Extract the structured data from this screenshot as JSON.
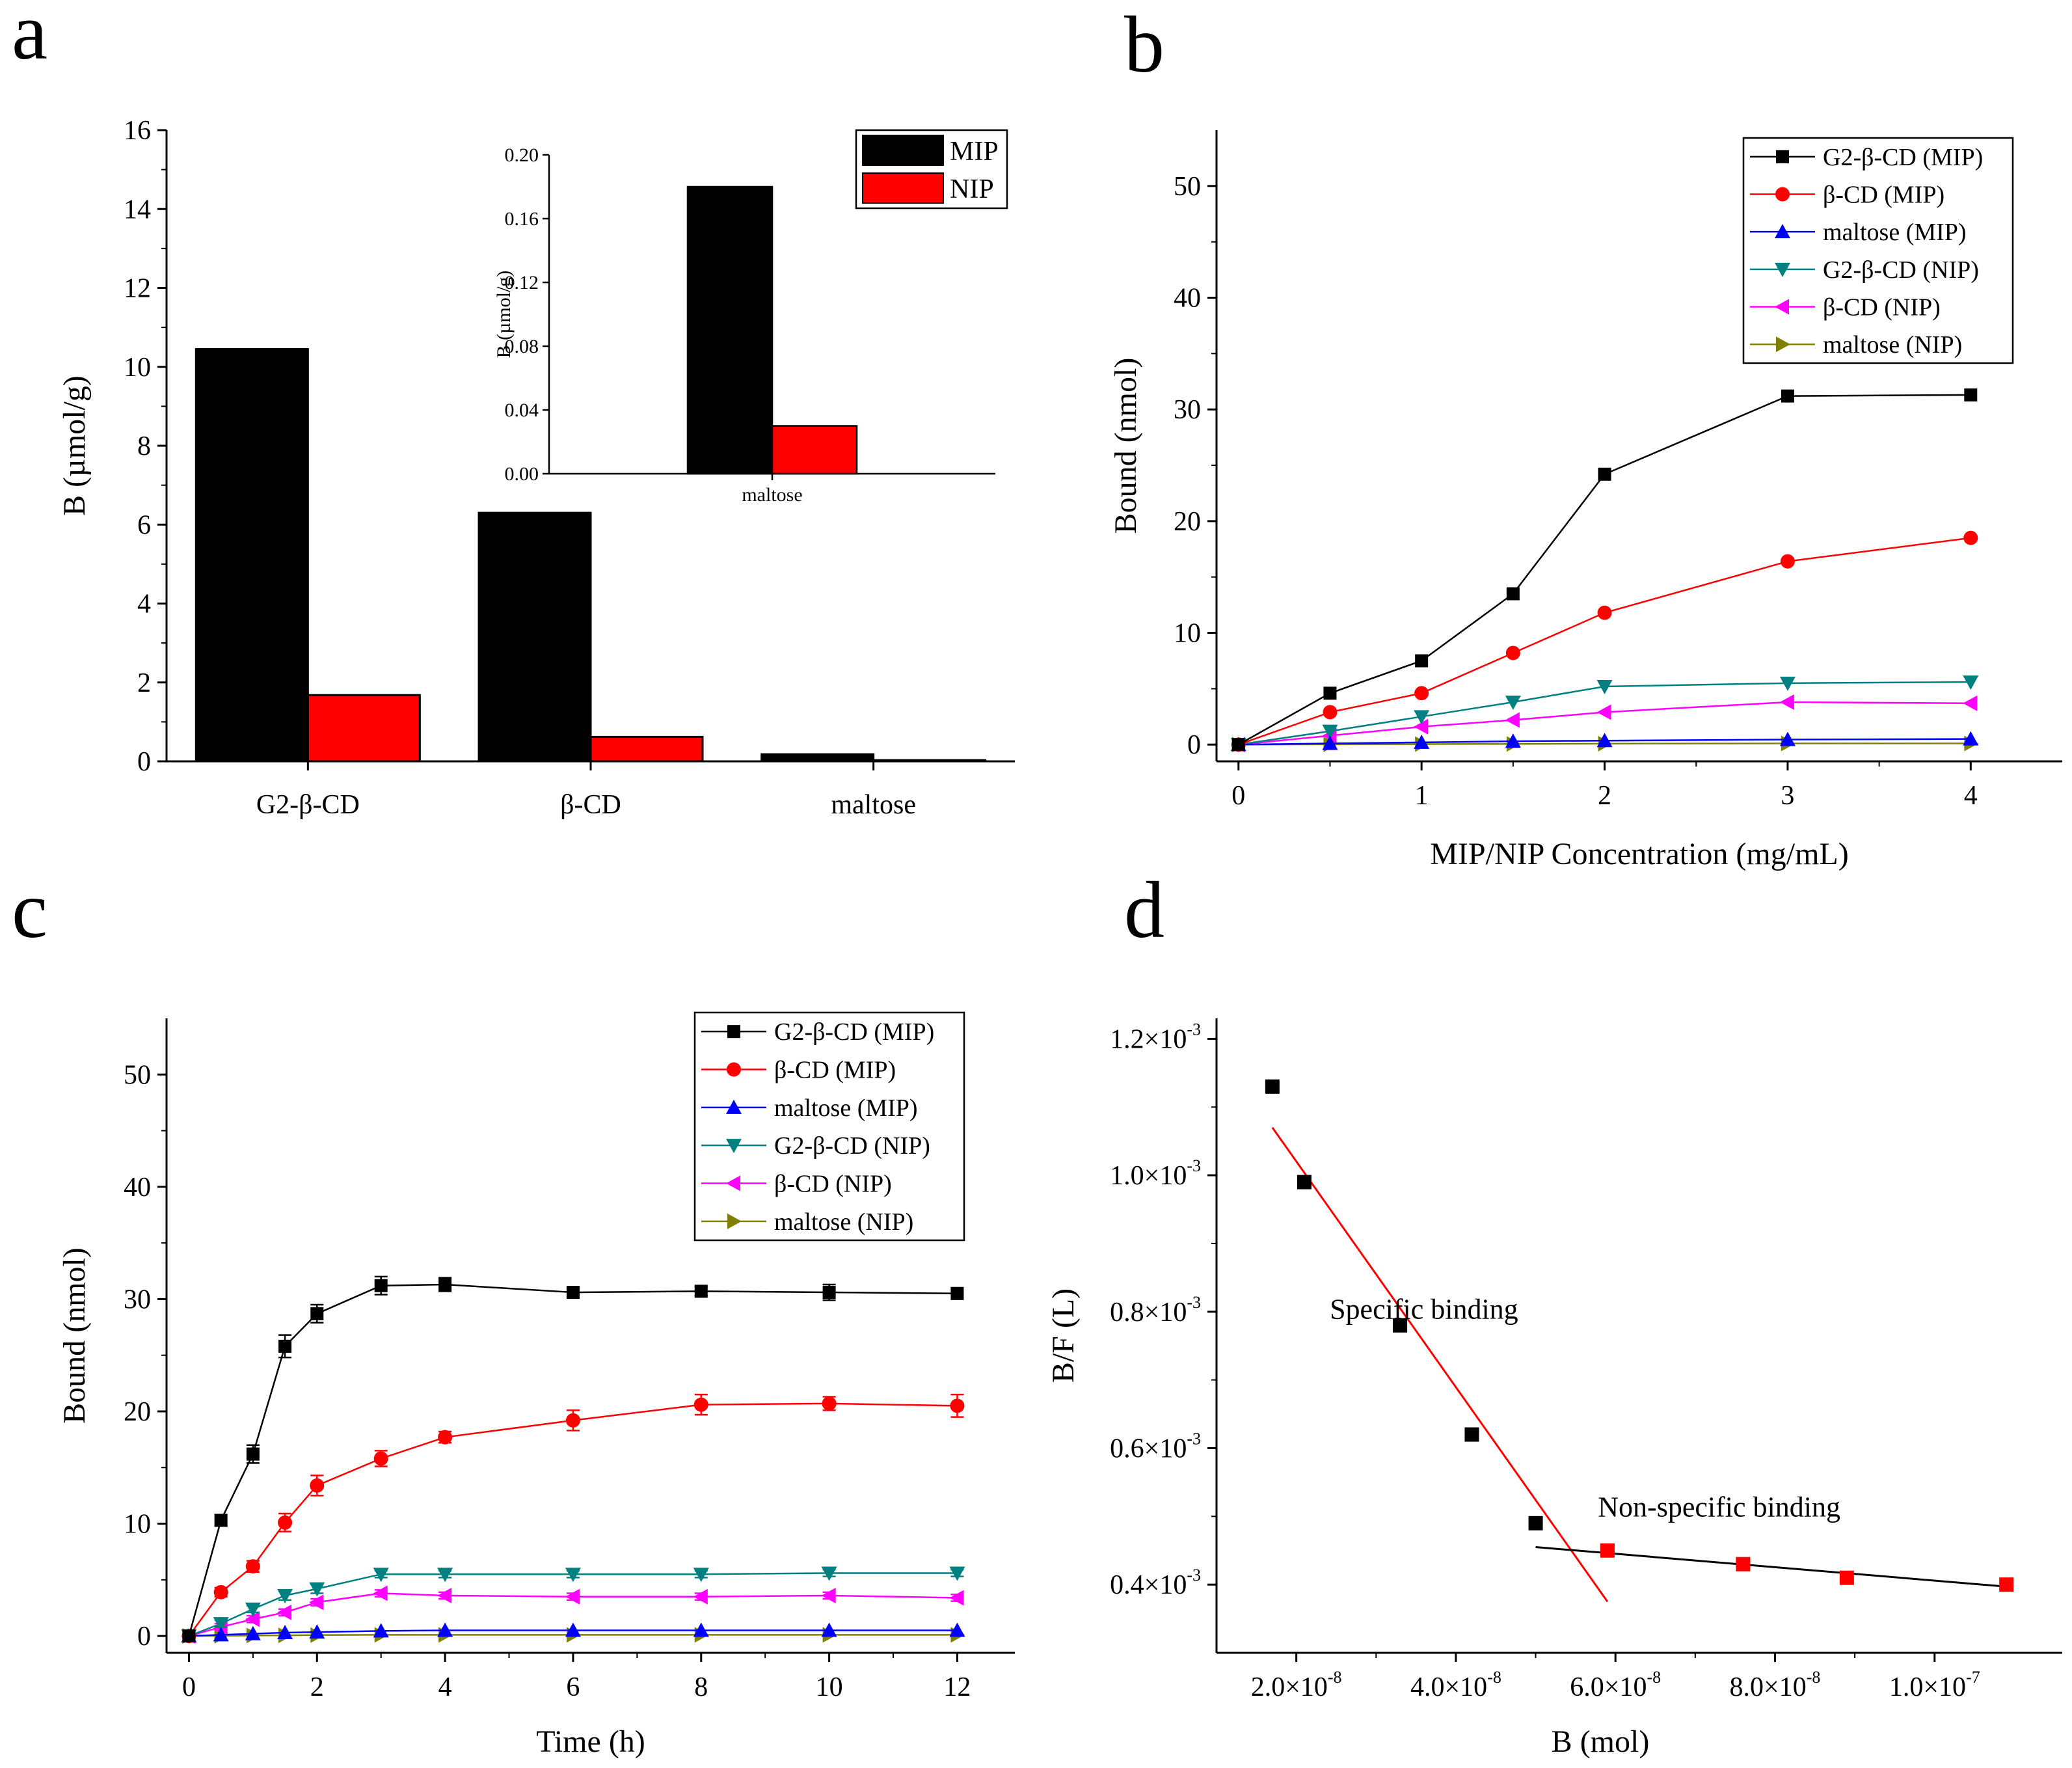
{
  "panels": [
    {
      "letter": "a"
    },
    {
      "letter": "b"
    },
    {
      "letter": "c"
    },
    {
      "letter": "d"
    }
  ],
  "chart_data": [
    {
      "panel": "a",
      "type": "bar",
      "xlabel": "",
      "ylabel": "B (µmol/g)",
      "ylim": [
        0,
        16
      ],
      "yticks": [
        0,
        2,
        4,
        6,
        8,
        10,
        12,
        14,
        16
      ],
      "categories": [
        "G2-β-CD",
        "β-CD",
        "maltose"
      ],
      "series": [
        {
          "name": "MIP",
          "color": "#000000",
          "values": [
            10.45,
            6.3,
            0.18
          ]
        },
        {
          "name": "NIP",
          "color": "#ff0000",
          "values": [
            1.68,
            0.62,
            0.03
          ]
        }
      ],
      "legend": "top-right",
      "inset": {
        "type": "bar",
        "ylabel": "B (µmol/g)",
        "ylim": [
          0,
          0.2
        ],
        "yticks": [
          "0.00",
          "0.04",
          "0.08",
          "0.12",
          "0.16",
          "0.20"
        ],
        "categories": [
          "maltose"
        ],
        "series": [
          {
            "name": "MIP",
            "color": "#000000",
            "values": [
              0.18
            ]
          },
          {
            "name": "NIP",
            "color": "#ff0000",
            "values": [
              0.03
            ]
          }
        ]
      }
    },
    {
      "panel": "b",
      "type": "line",
      "xlabel": "MIP/NIP Concentration (mg/mL)",
      "ylabel": "Bound (nmol)",
      "xlim": [
        -0.12,
        4.5
      ],
      "ylim": [
        -1.5,
        55
      ],
      "xticks": [
        0,
        1,
        2,
        3,
        4
      ],
      "yticks": [
        0,
        10,
        20,
        30,
        40,
        50
      ],
      "x": [
        0,
        0.5,
        1,
        1.5,
        2,
        3,
        4
      ],
      "legend": "top-right",
      "series": [
        {
          "name": "G2-β-CD (MIP)",
          "color": "#000000",
          "marker": "square",
          "values": [
            0,
            4.6,
            7.5,
            13.5,
            24.2,
            31.2,
            31.3
          ]
        },
        {
          "name": "β-CD (MIP)",
          "color": "#ff0000",
          "marker": "circle",
          "values": [
            0,
            2.9,
            4.6,
            8.2,
            11.8,
            16.4,
            18.5
          ]
        },
        {
          "name": "maltose (MIP)",
          "color": "#0000ff",
          "marker": "triangle-up",
          "values": [
            0,
            0.1,
            0.2,
            0.3,
            0.35,
            0.45,
            0.5
          ]
        },
        {
          "name": "G2-β-CD (NIP)",
          "color": "#008080",
          "marker": "triangle-down",
          "values": [
            0,
            1.2,
            2.5,
            3.8,
            5.2,
            5.5,
            5.6
          ]
        },
        {
          "name": "β-CD (NIP)",
          "color": "#ff00ff",
          "marker": "triangle-left",
          "values": [
            0,
            0.8,
            1.6,
            2.2,
            2.9,
            3.8,
            3.7
          ]
        },
        {
          "name": "maltose (NIP)",
          "color": "#808000",
          "marker": "triangle-right",
          "values": [
            0,
            0.02,
            0.04,
            0.06,
            0.08,
            0.1,
            0.1
          ]
        }
      ]
    },
    {
      "panel": "c",
      "type": "line",
      "xlabel": "Time (h)",
      "ylabel": "Bound (nmol)",
      "xlim": [
        -0.35,
        12.9
      ],
      "ylim": [
        -1.5,
        55
      ],
      "xticks": [
        0,
        2,
        4,
        6,
        8,
        10,
        12
      ],
      "yticks": [
        0,
        10,
        20,
        30,
        40,
        50
      ],
      "x": [
        0,
        0.5,
        1,
        1.5,
        2,
        3,
        4,
        6,
        8,
        10,
        12
      ],
      "legend": "top-right",
      "series": [
        {
          "name": "G2-β-CD (MIP)",
          "color": "#000000",
          "marker": "square",
          "values": [
            0,
            10.3,
            16.2,
            25.8,
            28.7,
            31.2,
            31.3,
            30.6,
            30.7,
            30.6,
            30.5
          ],
          "errors": [
            0,
            0.5,
            0.8,
            1.0,
            0.8,
            0.8,
            0.6,
            0.4,
            0.4,
            0.7,
            0.5
          ]
        },
        {
          "name": "β-CD (MIP)",
          "color": "#ff0000",
          "marker": "circle",
          "values": [
            0,
            3.9,
            6.2,
            10.1,
            13.4,
            15.8,
            17.7,
            19.2,
            20.6,
            20.7,
            20.5
          ],
          "errors": [
            0,
            0.4,
            0.5,
            0.8,
            0.9,
            0.7,
            0.5,
            0.9,
            0.9,
            0.6,
            1.0
          ]
        },
        {
          "name": "maltose (MIP)",
          "color": "#0000ff",
          "marker": "triangle-up",
          "values": [
            0,
            0.1,
            0.2,
            0.3,
            0.35,
            0.45,
            0.5,
            0.5,
            0.5,
            0.5,
            0.5
          ],
          "errors": [
            0,
            0,
            0,
            0,
            0,
            0,
            0,
            0,
            0,
            0,
            0
          ]
        },
        {
          "name": "G2-β-CD (NIP)",
          "color": "#008080",
          "marker": "triangle-down",
          "values": [
            0,
            1.1,
            2.4,
            3.6,
            4.2,
            5.5,
            5.5,
            5.5,
            5.5,
            5.6,
            5.6
          ],
          "errors": [
            0,
            0.3,
            0.3,
            0.4,
            0.4,
            0.3,
            0.3,
            0.3,
            0.3,
            0.3,
            0.3
          ]
        },
        {
          "name": "β-CD (NIP)",
          "color": "#ff00ff",
          "marker": "triangle-left",
          "values": [
            0,
            0.8,
            1.5,
            2.1,
            3.0,
            3.8,
            3.6,
            3.5,
            3.5,
            3.6,
            3.4
          ],
          "errors": [
            0,
            0.3,
            0.3,
            0.3,
            0.3,
            0.3,
            0.3,
            0.3,
            0.3,
            0.3,
            0.3
          ]
        },
        {
          "name": "maltose (NIP)",
          "color": "#808000",
          "marker": "triangle-right",
          "values": [
            0,
            0.02,
            0.04,
            0.06,
            0.08,
            0.1,
            0.1,
            0.1,
            0.1,
            0.1,
            0.1
          ],
          "errors": [
            0,
            0,
            0,
            0,
            0,
            0,
            0,
            0,
            0,
            0,
            0
          ]
        }
      ]
    },
    {
      "panel": "d",
      "type": "scatter",
      "xlabel": "B (mol)",
      "ylabel": "B/F (L)",
      "xlim": [
        1e-08,
        1.16e-07
      ],
      "ylim": [
        0.0003,
        0.00123
      ],
      "xticks": [
        {
          "mant": "2.0×10",
          "exp": "-8",
          "value": 2e-08
        },
        {
          "mant": "4.0×10",
          "exp": "-8",
          "value": 4e-08
        },
        {
          "mant": "6.0×10",
          "exp": "-8",
          "value": 6e-08
        },
        {
          "mant": "8.0×10",
          "exp": "-8",
          "value": 8e-08
        },
        {
          "mant": "1.0×10",
          "exp": "-7",
          "value": 1e-07
        }
      ],
      "yticks": [
        {
          "mant": "0.4×10",
          "exp": "-3",
          "value": 0.0004
        },
        {
          "mant": "0.6×10",
          "exp": "-3",
          "value": 0.0006
        },
        {
          "mant": "0.8×10",
          "exp": "-3",
          "value": 0.0008
        },
        {
          "mant": "1.0×10",
          "exp": "-3",
          "value": 0.001
        },
        {
          "mant": "1.2×10",
          "exp": "-3",
          "value": 0.0012
        }
      ],
      "series": [
        {
          "name": "specific",
          "color": "#000000",
          "x": [
            1.7e-08,
            2.1e-08,
            3.3e-08,
            4.2e-08,
            5e-08
          ],
          "y": [
            0.00113,
            0.00099,
            0.00078,
            0.00062,
            0.00049
          ]
        },
        {
          "name": "non-specific",
          "color": "#ff0000",
          "x": [
            5.9e-08,
            7.6e-08,
            8.9e-08,
            1.09e-07
          ],
          "y": [
            0.00045,
            0.00043,
            0.00041,
            0.0004
          ]
        }
      ],
      "fits": [
        {
          "color": "#ff0000",
          "x": [
            1.7e-08,
            5.9e-08
          ],
          "y": [
            0.00107,
            0.000375
          ]
        },
        {
          "color": "#000000",
          "x": [
            5e-08,
            1.09e-07
          ],
          "y": [
            0.000455,
            0.000397
          ]
        }
      ],
      "annotations": [
        {
          "text": "Specific binding",
          "x": 3.6e-08,
          "y": 0.00079
        },
        {
          "text": "Non-specific binding",
          "x": 7.3e-08,
          "y": 0.0005
        }
      ]
    }
  ]
}
